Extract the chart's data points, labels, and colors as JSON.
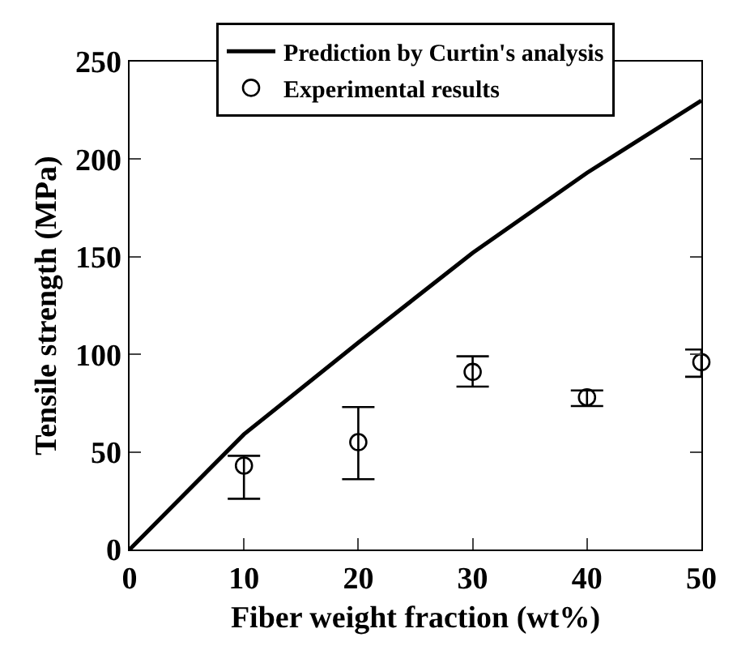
{
  "chart_data": {
    "type": "scatter",
    "xlabel": "Fiber weight fraction (wt%)",
    "ylabel": "Tensile strength (MPa)",
    "xlim": [
      0,
      50
    ],
    "ylim": [
      0,
      250
    ],
    "xticks": [
      0,
      10,
      20,
      30,
      40,
      50
    ],
    "yticks": [
      0,
      50,
      100,
      150,
      200,
      250
    ],
    "grid": false,
    "legend": "top",
    "series": [
      {
        "name": "Prediction by Curtin's analysis",
        "type": "line",
        "color": "#000000",
        "x": [
          0,
          10,
          20,
          30,
          40,
          50
        ],
        "values": [
          0,
          59,
          106,
          152,
          193,
          230
        ],
        "marker": "none",
        "line_style": "solid"
      },
      {
        "name": "Experimental results",
        "type": "scatter",
        "color": "#000000",
        "x": [
          10,
          20,
          30,
          40,
          50
        ],
        "values": [
          43,
          55,
          91,
          78,
          96
        ],
        "marker": "circle",
        "errors": [
          [
            26,
            48
          ],
          [
            36,
            73
          ],
          [
            83.5,
            99
          ],
          [
            73.5,
            81.5
          ],
          [
            88.5,
            102.5
          ]
        ]
      }
    ]
  }
}
